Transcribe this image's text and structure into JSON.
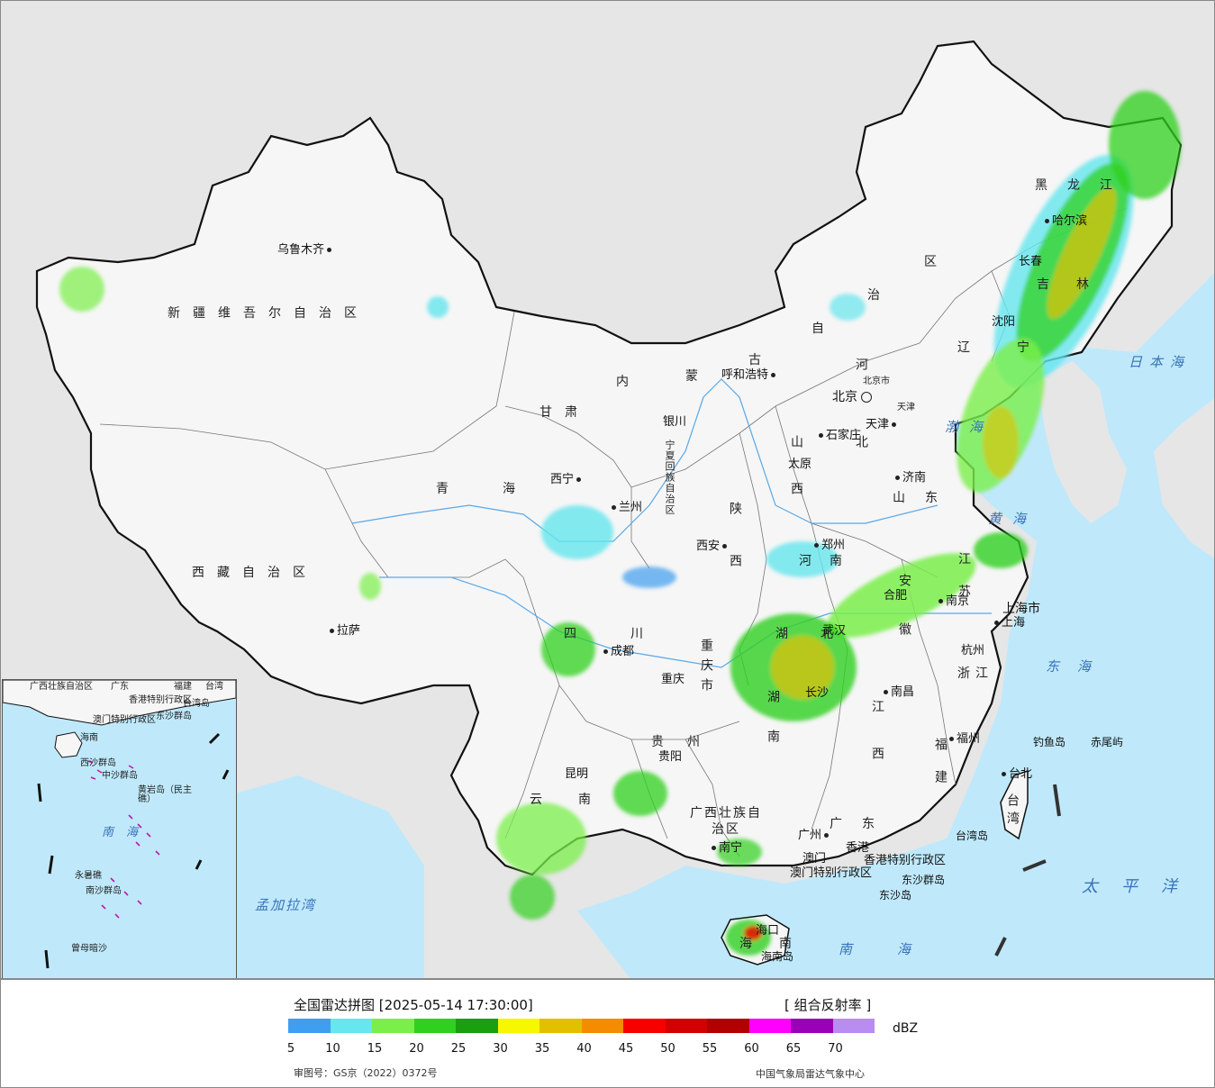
{
  "map": {
    "cities": {
      "urumqi": "乌鲁木齐",
      "hohhot": "呼和浩特",
      "beijing": "北京",
      "beijing_small": "北京市",
      "tianjin": "天津",
      "tianjin_small": "天津",
      "shijiazhuang": "石家庄",
      "taiyuan": "太原",
      "yinchuan": "银川",
      "xining": "西宁",
      "lanzhou": "兰州",
      "xian": "西安",
      "zhengzhou": "郑州",
      "jinan": "济南",
      "nanjing": "南京",
      "hefei": "合肥",
      "shanghai": "上海市",
      "shanghai_small": "上海",
      "hangzhou": "杭州",
      "wuhan": "武汉",
      "changsha": "长沙",
      "nanchang": "南昌",
      "fuzhou": "福州",
      "taipei": "台北",
      "chengdu": "成都",
      "chongqing": "重庆",
      "guiyang": "贵阳",
      "kunming": "昆明",
      "nanning": "南宁",
      "guangzhou": "广州",
      "hongkong": "香港",
      "macau": "澳门",
      "haikou": "海口",
      "lhasa": "拉萨",
      "harbin": "哈尔滨",
      "changchun": "长春",
      "shenyang": "沈阳"
    },
    "provinces": {
      "xinjiang": "新疆维吾尔自治区",
      "tibet": "西藏自治区",
      "qinghai": "青海",
      "gansu": "甘肃",
      "innermongolia_1": "内",
      "innermongolia_2": "蒙",
      "innermongolia_3": "古",
      "innermongolia_4": "自",
      "innermongolia_5": "治",
      "innermongolia_6": "区",
      "heilongjiang": "黑龙江",
      "jilin": "吉林",
      "liaoning": "辽宁",
      "hebei": "河北",
      "shanxi": "山西",
      "shaanxi": "陕西",
      "ningxia": "宁夏回族自治区",
      "henan": "河南",
      "shandong": "山东",
      "jiangsu": "江苏",
      "anhui": "安徽",
      "zhejiang": "浙江",
      "jiangxi": "江西",
      "fujian": "福建",
      "taiwan": "台湾",
      "hubei": "湖北",
      "hunan": "湖南",
      "sichuan": "四川",
      "chongqing": "重庆市",
      "guizhou": "贵州",
      "yunnan": "云南",
      "guangxi": "广西壮族自治区",
      "guangdong": "广东",
      "hainan": "海南",
      "hk_sar": "香港特别行政区",
      "macau_sar": "澳门特别行政区"
    },
    "seas": {
      "bohai": "渤海",
      "yellow_sea": "黄海",
      "east_sea": "东海",
      "south_sea": "南海",
      "pacific": "太平洋",
      "japan_sea": "日本海",
      "bengal": "孟加拉湾"
    },
    "islands": {
      "diaoyu": "钓鱼岛",
      "chiwei": "赤尾屿",
      "dongsha_group": "东沙群岛",
      "dongsha": "东沙岛",
      "taiwan_island": "台湾岛",
      "hainan_island": "海南岛"
    },
    "inset": {
      "labels": {
        "guangxi": "广西壮族自治区",
        "guangdong": "广东",
        "fujian": "福建",
        "taiwan": "台湾",
        "taiwan_island": "台湾岛",
        "hk": "香港特别行政区",
        "macau": "澳门特别行政区",
        "dongsha": "东沙群岛",
        "hainan": "海南",
        "xisha": "西沙群岛",
        "zhongsha": "中沙群岛",
        "huangyan": "黄岩岛（民主礁）",
        "south_sea": "南海",
        "yongshu": "永暑礁",
        "nansha": "南沙群岛",
        "zengmu": "曾母暗沙"
      }
    }
  },
  "legend": {
    "title": "全国雷达拼图 [2025-05-14 17:30:00]",
    "product": "[ 组合反射率 ]",
    "unit": "dBZ",
    "colors": [
      "#3f9ef0",
      "#66e6ee",
      "#7aef4a",
      "#2fd01e",
      "#1a9f10",
      "#f7f700",
      "#e2c000",
      "#f58c00",
      "#f70000",
      "#d30000",
      "#b20000",
      "#ff00ff",
      "#9a00b8",
      "#b98cf2"
    ],
    "ticks": [
      "5",
      "10",
      "15",
      "20",
      "25",
      "30",
      "35",
      "40",
      "45",
      "50",
      "55",
      "60",
      "65",
      "70"
    ],
    "review_no": "审图号：GS京（2022）0372号",
    "agency": "中国气象局雷达气象中心"
  }
}
